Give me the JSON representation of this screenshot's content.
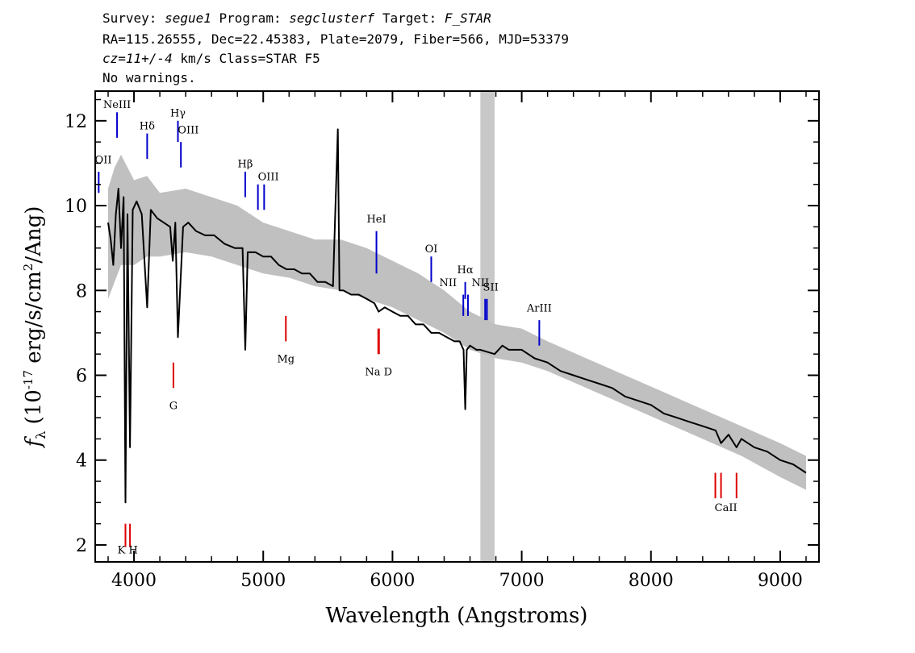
{
  "header": {
    "survey_label": "Survey:",
    "survey": "segue1",
    "program_label": "Program:",
    "program": "segclusterf",
    "target_label": "Target:",
    "target": "F_STAR",
    "coords": "RA=115.26555, Dec=22.45383, Plate=2079, Fiber=566, MJD=53379",
    "cz_value": "cz=11+/-4",
    "cz_rest": "km/s  Class=STAR F5",
    "warnings": "No warnings."
  },
  "colors": {
    "flux": "#000000",
    "error_band": "#c0c0c0",
    "masked_region": "#c8c8c8",
    "emission_line": "#0000cc",
    "absorption_line": "#dd0000"
  },
  "chart_data": {
    "type": "line",
    "title": "",
    "xlabel": "Wavelength (Angstroms)",
    "ylabel_main": "f",
    "ylabel_sub": "λ",
    "ylabel_unit_pre": "(10",
    "ylabel_exp": "-17",
    "ylabel_unit_post": " erg/s/cm",
    "ylabel_exp2": "2",
    "ylabel_unit_end": "/Ang)",
    "xlim": [
      3700,
      9300
    ],
    "ylim": [
      1.6,
      12.7
    ],
    "xticks": [
      4000,
      5000,
      6000,
      7000,
      8000,
      9000
    ],
    "yticks": [
      2,
      4,
      6,
      8,
      10,
      12
    ],
    "masked_band": [
      6680,
      6790
    ],
    "series": [
      {
        "kind": "error_band",
        "x": [
          3800,
          3850,
          3900,
          4000,
          4100,
          4200,
          4400,
          4600,
          4800,
          5000,
          5200,
          5400,
          5600,
          5800,
          6000,
          6200,
          6400,
          6600,
          6800,
          7000,
          7200,
          7500,
          7800,
          8100,
          8400,
          8700,
          9000,
          9200
        ],
        "upper": [
          10.4,
          10.9,
          11.2,
          10.6,
          10.7,
          10.3,
          10.4,
          10.2,
          10.0,
          9.6,
          9.4,
          9.2,
          9.2,
          9.0,
          8.7,
          8.4,
          8.0,
          7.5,
          7.2,
          7.1,
          6.8,
          6.4,
          6.0,
          5.6,
          5.2,
          4.8,
          4.4,
          4.1
        ],
        "lower": [
          7.8,
          8.2,
          8.6,
          8.6,
          8.8,
          8.8,
          8.9,
          8.8,
          8.6,
          8.4,
          8.3,
          8.1,
          8.0,
          7.8,
          7.6,
          7.3,
          7.0,
          6.6,
          6.4,
          6.3,
          6.1,
          5.7,
          5.3,
          4.9,
          4.5,
          4.1,
          3.6,
          3.3
        ]
      },
      {
        "kind": "flux",
        "x": [
          3800,
          3820,
          3840,
          3860,
          3880,
          3900,
          3920,
          3934,
          3950,
          3969,
          3990,
          4020,
          4060,
          4102,
          4130,
          4180,
          4230,
          4280,
          4300,
          4320,
          4340,
          4380,
          4420,
          4480,
          4550,
          4620,
          4700,
          4780,
          4840,
          4861,
          4880,
          4940,
          5000,
          5060,
          5120,
          5180,
          5240,
          5300,
          5360,
          5420,
          5480,
          5540,
          5577,
          5590,
          5620,
          5680,
          5740,
          5800,
          5860,
          5893,
          5940,
          6000,
          6060,
          6120,
          6180,
          6240,
          6300,
          6360,
          6420,
          6480,
          6520,
          6550,
          6563,
          6575,
          6600,
          6650,
          6680,
          6790,
          6850,
          6900,
          6950,
          7000,
          7100,
          7200,
          7300,
          7400,
          7500,
          7600,
          7700,
          7800,
          7900,
          8000,
          8100,
          8200,
          8300,
          8400,
          8500,
          8542,
          8600,
          8662,
          8700,
          8800,
          8900,
          9000,
          9100,
          9200
        ],
        "y": [
          9.6,
          9.2,
          8.6,
          9.8,
          10.4,
          9.0,
          10.2,
          3.0,
          9.8,
          4.3,
          9.9,
          10.1,
          9.8,
          7.6,
          9.9,
          9.7,
          9.6,
          9.5,
          8.7,
          9.6,
          6.9,
          9.5,
          9.6,
          9.4,
          9.3,
          9.3,
          9.1,
          9.0,
          9.0,
          6.6,
          8.9,
          8.9,
          8.8,
          8.8,
          8.6,
          8.5,
          8.5,
          8.4,
          8.4,
          8.2,
          8.2,
          8.1,
          11.8,
          8.0,
          8.0,
          7.9,
          7.9,
          7.8,
          7.7,
          7.5,
          7.6,
          7.5,
          7.4,
          7.4,
          7.2,
          7.2,
          7.0,
          7.0,
          6.9,
          6.8,
          6.8,
          6.6,
          5.2,
          6.6,
          6.7,
          6.6,
          6.6,
          6.5,
          6.7,
          6.6,
          6.6,
          6.6,
          6.4,
          6.3,
          6.1,
          6.0,
          5.9,
          5.8,
          5.7,
          5.5,
          5.4,
          5.3,
          5.1,
          5.0,
          4.9,
          4.8,
          4.7,
          4.4,
          4.6,
          4.3,
          4.5,
          4.3,
          4.2,
          4.0,
          3.9,
          3.7
        ]
      }
    ],
    "emission_lines": [
      {
        "label": "OII",
        "x": 3727,
        "ylo": 10.3,
        "yhi": 10.8,
        "lx": 3727,
        "ly": 11.0
      },
      {
        "label": "NeIII",
        "x": 3869,
        "ylo": 11.6,
        "yhi": 12.2,
        "lx": 3869,
        "ly": 12.3
      },
      {
        "label": "Hδ",
        "x": 4102,
        "ylo": 11.1,
        "yhi": 11.7,
        "lx": 4102,
        "ly": 11.8
      },
      {
        "label": "Hγ",
        "x": 4340,
        "ylo": 11.5,
        "yhi": 12.0,
        "lx": 4340,
        "ly": 12.1
      },
      {
        "label": "OIII",
        "x": 4363,
        "ylo": 10.9,
        "yhi": 11.5,
        "lx": 4420,
        "ly": 11.7
      },
      {
        "label": "Hβ",
        "x": 4861,
        "ylo": 10.2,
        "yhi": 10.8,
        "lx": 4861,
        "ly": 10.9
      },
      {
        "label": "OIII",
        "x": 4959,
        "ylo": 9.9,
        "yhi": 10.5,
        "lx": 5040,
        "ly": 10.6
      },
      {
        "label": "OIII",
        "x": 5007,
        "ylo": 9.9,
        "yhi": 10.5,
        "lx": null,
        "ly": null
      },
      {
        "label": "HeI",
        "x": 5876,
        "ylo": 8.4,
        "yhi": 9.4,
        "lx": 5876,
        "ly": 9.6
      },
      {
        "label": "OI",
        "x": 6300,
        "ylo": 8.2,
        "yhi": 8.8,
        "lx": 6300,
        "ly": 8.9
      },
      {
        "label": "NII",
        "x": 6548,
        "ylo": 7.4,
        "yhi": 7.9,
        "lx": 6430,
        "ly": 8.1
      },
      {
        "label": "Hα",
        "x": 6563,
        "ylo": 7.8,
        "yhi": 8.2,
        "lx": 6563,
        "ly": 8.4
      },
      {
        "label": "NII",
        "x": 6584,
        "ylo": 7.4,
        "yhi": 7.9,
        "lx": 6680,
        "ly": 8.1
      },
      {
        "label": "SII",
        "x": 6717,
        "ylo": 7.3,
        "yhi": 7.8,
        "lx": 6760,
        "ly": 8.0
      },
      {
        "label": "SII",
        "x": 6731,
        "ylo": 7.3,
        "yhi": 7.8,
        "lx": null,
        "ly": null
      },
      {
        "label": "ArIII",
        "x": 7136,
        "ylo": 6.7,
        "yhi": 7.3,
        "lx": 7136,
        "ly": 7.5
      }
    ],
    "absorption_lines": [
      {
        "label": "K",
        "x": 3934,
        "ylo": 1.95,
        "yhi": 2.5
      },
      {
        "label": "H",
        "x": 3969,
        "ylo": 1.95,
        "yhi": 2.5
      },
      {
        "label": "G",
        "x": 4305,
        "ylo": 5.7,
        "yhi": 6.3
      },
      {
        "label": "Mg",
        "x": 5175,
        "ylo": 6.8,
        "yhi": 7.4
      },
      {
        "label": "Na",
        "x": 5890,
        "ylo": 6.5,
        "yhi": 7.1
      },
      {
        "label": "D",
        "x": 5896,
        "ylo": 6.5,
        "yhi": 7.1
      },
      {
        "label": "CaII",
        "x": 8498,
        "ylo": 3.1,
        "yhi": 3.7
      },
      {
        "label": "CaII",
        "x": 8542,
        "ylo": 3.1,
        "yhi": 3.7
      },
      {
        "label": "CaII",
        "x": 8662,
        "ylo": 3.1,
        "yhi": 3.7
      }
    ],
    "absorption_labels": [
      {
        "text": "K H",
        "x": 3951,
        "y": 1.8
      },
      {
        "text": "G",
        "x": 4305,
        "y": 5.2
      },
      {
        "text": "Mg",
        "x": 5175,
        "y": 6.3
      },
      {
        "text": "Na  D",
        "x": 5893,
        "y": 6.0
      },
      {
        "text": "CaII",
        "x": 8580,
        "y": 2.8
      }
    ]
  }
}
